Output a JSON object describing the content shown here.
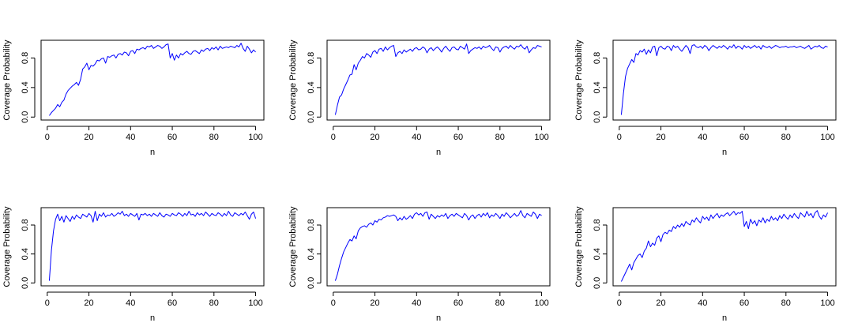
{
  "chart_data": [
    {
      "type": "line",
      "xlabel": "n",
      "ylabel": "Coverage Probability",
      "xlim": [
        1,
        100
      ],
      "ylim": [
        0,
        1
      ],
      "xticks": [
        "0",
        "20",
        "40",
        "60",
        "80",
        "100"
      ],
      "yticks": [
        "0.0",
        "0.4",
        "0.8"
      ],
      "color": "#0000ff",
      "grid": false,
      "x": [
        1,
        2,
        3,
        4,
        5,
        6,
        7,
        8,
        9,
        10,
        11,
        12,
        13,
        14,
        15,
        16,
        17,
        18,
        19,
        20,
        21,
        22,
        23,
        24,
        25,
        26,
        27,
        28,
        29,
        30,
        31,
        32,
        33,
        34,
        35,
        36,
        37,
        38,
        39,
        40,
        41,
        42,
        43,
        44,
        45,
        46,
        47,
        48,
        49,
        50,
        51,
        52,
        53,
        54,
        55,
        56,
        57,
        58,
        59,
        60,
        61,
        62,
        63,
        64,
        65,
        66,
        67,
        68,
        69,
        70,
        71,
        72,
        73,
        74,
        75,
        76,
        77,
        78,
        79,
        80,
        81,
        82,
        83,
        84,
        85,
        86,
        87,
        88,
        89,
        90,
        91,
        92,
        93,
        94,
        95,
        96,
        97,
        98,
        99,
        100
      ],
      "y": [
        0.02,
        0.06,
        0.09,
        0.12,
        0.17,
        0.14,
        0.2,
        0.23,
        0.31,
        0.36,
        0.39,
        0.42,
        0.44,
        0.47,
        0.43,
        0.51,
        0.65,
        0.68,
        0.73,
        0.64,
        0.7,
        0.69,
        0.72,
        0.77,
        0.76,
        0.79,
        0.8,
        0.73,
        0.82,
        0.81,
        0.83,
        0.84,
        0.8,
        0.85,
        0.86,
        0.84,
        0.88,
        0.87,
        0.83,
        0.89,
        0.9,
        0.86,
        0.92,
        0.91,
        0.93,
        0.94,
        0.92,
        0.96,
        0.95,
        0.97,
        0.93,
        0.95,
        0.97,
        0.96,
        0.93,
        0.95,
        0.98,
        0.99,
        0.8,
        0.86,
        0.77,
        0.84,
        0.8,
        0.86,
        0.84,
        0.87,
        0.89,
        0.86,
        0.85,
        0.89,
        0.9,
        0.88,
        0.86,
        0.91,
        0.89,
        0.92,
        0.93,
        0.9,
        0.94,
        0.92,
        0.95,
        0.91,
        0.96,
        0.93,
        0.94,
        0.95,
        0.94,
        0.96,
        0.95,
        0.94,
        0.97,
        0.95,
        1.0,
        0.93,
        0.89,
        0.96,
        0.92,
        0.87,
        0.91,
        0.88
      ]
    },
    {
      "type": "line",
      "xlabel": "n",
      "ylabel": "Coverage Probability",
      "xlim": [
        1,
        100
      ],
      "ylim": [
        0,
        1
      ],
      "xticks": [
        "0",
        "20",
        "40",
        "60",
        "80",
        "100"
      ],
      "yticks": [
        "0.0",
        "0.4",
        "0.8"
      ],
      "color": "#0000ff",
      "grid": false,
      "x": [
        1,
        2,
        3,
        4,
        5,
        6,
        7,
        8,
        9,
        10,
        11,
        12,
        13,
        14,
        15,
        16,
        17,
        18,
        19,
        20,
        21,
        22,
        23,
        24,
        25,
        26,
        27,
        28,
        29,
        30,
        31,
        32,
        33,
        34,
        35,
        36,
        37,
        38,
        39,
        40,
        41,
        42,
        43,
        44,
        45,
        46,
        47,
        48,
        49,
        50,
        51,
        52,
        53,
        54,
        55,
        56,
        57,
        58,
        59,
        60,
        61,
        62,
        63,
        64,
        65,
        66,
        67,
        68,
        69,
        70,
        71,
        72,
        73,
        74,
        75,
        76,
        77,
        78,
        79,
        80,
        81,
        82,
        83,
        84,
        85,
        86,
        87,
        88,
        89,
        90,
        91,
        92,
        93,
        94,
        95,
        96,
        97,
        98,
        99,
        100
      ],
      "y": [
        0.03,
        0.16,
        0.27,
        0.3,
        0.38,
        0.44,
        0.5,
        0.57,
        0.58,
        0.71,
        0.64,
        0.73,
        0.77,
        0.82,
        0.8,
        0.86,
        0.84,
        0.81,
        0.88,
        0.9,
        0.86,
        0.92,
        0.93,
        0.89,
        0.95,
        0.91,
        0.94,
        0.96,
        0.97,
        0.82,
        0.87,
        0.89,
        0.86,
        0.91,
        0.88,
        0.9,
        0.92,
        0.89,
        0.93,
        0.94,
        0.91,
        0.92,
        0.95,
        0.93,
        0.87,
        0.92,
        0.94,
        0.9,
        0.93,
        0.95,
        0.92,
        0.88,
        0.93,
        0.96,
        0.92,
        0.89,
        0.94,
        0.95,
        0.92,
        0.91,
        0.96,
        0.94,
        0.92,
        0.99,
        0.86,
        0.9,
        0.92,
        0.94,
        0.93,
        0.95,
        0.92,
        0.96,
        0.94,
        0.95,
        0.97,
        0.93,
        0.9,
        0.95,
        0.94,
        0.88,
        0.93,
        0.95,
        0.96,
        0.93,
        0.97,
        0.94,
        0.92,
        0.96,
        0.95,
        0.98,
        0.94,
        0.92,
        0.96,
        0.87,
        0.91,
        0.94,
        0.93,
        0.97,
        0.96,
        0.95
      ]
    },
    {
      "type": "line",
      "xlabel": "n",
      "ylabel": "Coverage Probability",
      "xlim": [
        1,
        100
      ],
      "ylim": [
        0,
        1
      ],
      "xticks": [
        "0",
        "20",
        "40",
        "60",
        "80",
        "100"
      ],
      "yticks": [
        "0.0",
        "0.4",
        "0.8"
      ],
      "color": "#0000ff",
      "grid": false,
      "x": [
        1,
        2,
        3,
        4,
        5,
        6,
        7,
        8,
        9,
        10,
        11,
        12,
        13,
        14,
        15,
        16,
        17,
        18,
        19,
        20,
        21,
        22,
        23,
        24,
        25,
        26,
        27,
        28,
        29,
        30,
        31,
        32,
        33,
        34,
        35,
        36,
        37,
        38,
        39,
        40,
        41,
        42,
        43,
        44,
        45,
        46,
        47,
        48,
        49,
        50,
        51,
        52,
        53,
        54,
        55,
        56,
        57,
        58,
        59,
        60,
        61,
        62,
        63,
        64,
        65,
        66,
        67,
        68,
        69,
        70,
        71,
        72,
        73,
        74,
        75,
        76,
        77,
        78,
        79,
        80,
        81,
        82,
        83,
        84,
        85,
        86,
        87,
        88,
        89,
        90,
        91,
        92,
        93,
        94,
        95,
        96,
        97,
        98,
        99,
        100
      ],
      "y": [
        0.03,
        0.32,
        0.55,
        0.66,
        0.72,
        0.78,
        0.74,
        0.86,
        0.84,
        0.9,
        0.88,
        0.92,
        0.85,
        0.91,
        0.87,
        0.95,
        0.96,
        0.83,
        0.94,
        0.96,
        0.93,
        0.92,
        0.96,
        0.95,
        0.9,
        0.97,
        0.94,
        0.96,
        0.92,
        0.89,
        0.93,
        0.97,
        0.94,
        0.86,
        0.97,
        0.98,
        0.95,
        0.94,
        0.96,
        0.93,
        0.97,
        0.95,
        0.9,
        0.94,
        0.97,
        0.95,
        0.93,
        0.96,
        0.94,
        0.97,
        0.95,
        0.92,
        0.96,
        0.94,
        0.98,
        0.93,
        0.96,
        0.95,
        0.92,
        0.97,
        0.94,
        0.96,
        0.93,
        0.95,
        0.97,
        0.94,
        0.96,
        0.92,
        0.97,
        0.95,
        0.94,
        0.96,
        0.93,
        0.95,
        0.97,
        0.96,
        0.94,
        0.95,
        0.95,
        0.96,
        0.94,
        0.95,
        0.95,
        0.96,
        0.94,
        0.95,
        0.96,
        0.94,
        0.93,
        0.95,
        0.97,
        0.92,
        0.94,
        0.96,
        0.95,
        0.97,
        0.94,
        0.93,
        0.96,
        0.95
      ]
    },
    {
      "type": "line",
      "xlabel": "n",
      "ylabel": "Coverage Probability",
      "xlim": [
        1,
        100
      ],
      "ylim": [
        0,
        1
      ],
      "xticks": [
        "0",
        "20",
        "40",
        "60",
        "80",
        "100"
      ],
      "yticks": [
        "0.0",
        "0.4",
        "0.8"
      ],
      "color": "#0000ff",
      "grid": false,
      "x": [
        1,
        2,
        3,
        4,
        5,
        6,
        7,
        8,
        9,
        10,
        11,
        12,
        13,
        14,
        15,
        16,
        17,
        18,
        19,
        20,
        21,
        22,
        23,
        24,
        25,
        26,
        27,
        28,
        29,
        30,
        31,
        32,
        33,
        34,
        35,
        36,
        37,
        38,
        39,
        40,
        41,
        42,
        43,
        44,
        45,
        46,
        47,
        48,
        49,
        50,
        51,
        52,
        53,
        54,
        55,
        56,
        57,
        58,
        59,
        60,
        61,
        62,
        63,
        64,
        65,
        66,
        67,
        68,
        69,
        70,
        71,
        72,
        73,
        74,
        75,
        76,
        77,
        78,
        79,
        80,
        81,
        82,
        83,
        84,
        85,
        86,
        87,
        88,
        89,
        90,
        91,
        92,
        93,
        94,
        95,
        96,
        97,
        98,
        99,
        100
      ],
      "y": [
        0.03,
        0.45,
        0.72,
        0.88,
        0.95,
        0.86,
        0.92,
        0.84,
        0.93,
        0.89,
        0.85,
        0.92,
        0.88,
        0.94,
        0.91,
        0.89,
        0.95,
        0.93,
        0.91,
        0.96,
        0.93,
        0.84,
        0.99,
        0.86,
        0.95,
        0.92,
        0.97,
        0.91,
        0.94,
        0.93,
        0.96,
        0.92,
        0.94,
        0.97,
        0.95,
        0.99,
        0.93,
        0.95,
        0.92,
        0.96,
        0.94,
        0.92,
        0.96,
        0.87,
        0.95,
        0.94,
        0.96,
        0.93,
        0.95,
        0.92,
        0.96,
        0.94,
        0.92,
        0.97,
        0.93,
        0.91,
        0.95,
        0.94,
        0.92,
        0.96,
        0.94,
        0.93,
        0.97,
        0.95,
        0.92,
        0.96,
        0.93,
        0.99,
        0.94,
        0.95,
        0.92,
        0.97,
        0.94,
        0.96,
        0.93,
        0.98,
        0.95,
        0.92,
        0.96,
        0.94,
        0.93,
        0.97,
        0.95,
        0.92,
        0.96,
        0.93,
        0.99,
        0.94,
        0.92,
        0.97,
        0.95,
        0.93,
        0.96,
        0.94,
        0.98,
        0.93,
        0.88,
        0.95,
        0.98,
        0.89
      ]
    },
    {
      "type": "line",
      "xlabel": "n",
      "ylabel": "Coverage Probability",
      "xlim": [
        1,
        100
      ],
      "ylim": [
        0,
        1
      ],
      "xticks": [
        "0",
        "20",
        "40",
        "60",
        "80",
        "100"
      ],
      "yticks": [
        "0.0",
        "0.4",
        "0.8"
      ],
      "color": "#0000ff",
      "grid": false,
      "x": [
        1,
        2,
        3,
        4,
        5,
        6,
        7,
        8,
        9,
        10,
        11,
        12,
        13,
        14,
        15,
        16,
        17,
        18,
        19,
        20,
        21,
        22,
        23,
        24,
        25,
        26,
        27,
        28,
        29,
        30,
        31,
        32,
        33,
        34,
        35,
        36,
        37,
        38,
        39,
        40,
        41,
        42,
        43,
        44,
        45,
        46,
        47,
        48,
        49,
        50,
        51,
        52,
        53,
        54,
        55,
        56,
        57,
        58,
        59,
        60,
        61,
        62,
        63,
        64,
        65,
        66,
        67,
        68,
        69,
        70,
        71,
        72,
        73,
        74,
        75,
        76,
        77,
        78,
        79,
        80,
        81,
        82,
        83,
        84,
        85,
        86,
        87,
        88,
        89,
        90,
        91,
        92,
        93,
        94,
        95,
        96,
        97,
        98,
        99,
        100
      ],
      "y": [
        0.03,
        0.12,
        0.24,
        0.34,
        0.43,
        0.49,
        0.55,
        0.6,
        0.58,
        0.65,
        0.61,
        0.72,
        0.76,
        0.78,
        0.79,
        0.77,
        0.81,
        0.83,
        0.8,
        0.86,
        0.84,
        0.88,
        0.87,
        0.9,
        0.91,
        0.93,
        0.92,
        0.93,
        0.94,
        0.92,
        0.86,
        0.9,
        0.87,
        0.92,
        0.88,
        0.9,
        0.93,
        0.89,
        0.95,
        0.97,
        0.94,
        0.96,
        0.92,
        0.97,
        0.98,
        0.88,
        0.95,
        0.92,
        0.89,
        0.93,
        0.91,
        0.94,
        0.92,
        0.96,
        0.89,
        0.93,
        0.95,
        0.92,
        0.96,
        0.94,
        0.92,
        0.9,
        0.96,
        0.93,
        0.87,
        0.92,
        0.94,
        0.89,
        0.93,
        0.95,
        0.91,
        0.96,
        0.93,
        0.97,
        0.9,
        0.94,
        0.92,
        0.96,
        0.93,
        0.89,
        0.95,
        0.92,
        0.97,
        0.94,
        0.9,
        0.93,
        0.96,
        0.92,
        0.94,
        1.0,
        0.93,
        0.9,
        0.96,
        0.94,
        0.92,
        0.98,
        0.95,
        0.89,
        0.95,
        0.93
      ]
    },
    {
      "type": "line",
      "xlabel": "n",
      "ylabel": "Coverage Probability",
      "xlim": [
        1,
        100
      ],
      "ylim": [
        0,
        1
      ],
      "xticks": [
        "0",
        "20",
        "40",
        "60",
        "80",
        "100"
      ],
      "yticks": [
        "0.0",
        "0.4",
        "0.8"
      ],
      "color": "#0000ff",
      "grid": false,
      "x": [
        1,
        2,
        3,
        4,
        5,
        6,
        7,
        8,
        9,
        10,
        11,
        12,
        13,
        14,
        15,
        16,
        17,
        18,
        19,
        20,
        21,
        22,
        23,
        24,
        25,
        26,
        27,
        28,
        29,
        30,
        31,
        32,
        33,
        34,
        35,
        36,
        37,
        38,
        39,
        40,
        41,
        42,
        43,
        44,
        45,
        46,
        47,
        48,
        49,
        50,
        51,
        52,
        53,
        54,
        55,
        56,
        57,
        58,
        59,
        60,
        61,
        62,
        63,
        64,
        65,
        66,
        67,
        68,
        69,
        70,
        71,
        72,
        73,
        74,
        75,
        76,
        77,
        78,
        79,
        80,
        81,
        82,
        83,
        84,
        85,
        86,
        87,
        88,
        89,
        90,
        91,
        92,
        93,
        94,
        95,
        96,
        97,
        98,
        99,
        100
      ],
      "y": [
        0.02,
        0.08,
        0.14,
        0.2,
        0.26,
        0.18,
        0.28,
        0.33,
        0.38,
        0.4,
        0.35,
        0.44,
        0.48,
        0.58,
        0.5,
        0.55,
        0.52,
        0.62,
        0.65,
        0.57,
        0.67,
        0.7,
        0.68,
        0.73,
        0.71,
        0.78,
        0.75,
        0.8,
        0.77,
        0.82,
        0.78,
        0.85,
        0.82,
        0.8,
        0.87,
        0.84,
        0.9,
        0.86,
        0.83,
        0.92,
        0.88,
        0.91,
        0.86,
        0.94,
        0.89,
        0.93,
        0.96,
        0.9,
        0.94,
        0.92,
        0.95,
        0.97,
        0.93,
        0.96,
        0.99,
        0.94,
        0.97,
        0.96,
        0.99,
        0.78,
        0.85,
        0.75,
        0.88,
        0.82,
        0.86,
        0.79,
        0.87,
        0.84,
        0.9,
        0.83,
        0.88,
        0.85,
        0.92,
        0.87,
        0.9,
        0.86,
        0.93,
        0.89,
        0.95,
        0.91,
        0.88,
        0.94,
        0.9,
        0.96,
        0.92,
        0.89,
        0.97,
        0.94,
        0.91,
        0.99,
        0.93,
        0.96,
        0.9,
        0.97,
        1.0,
        0.92,
        0.88,
        0.94,
        0.91,
        0.97
      ]
    }
  ]
}
